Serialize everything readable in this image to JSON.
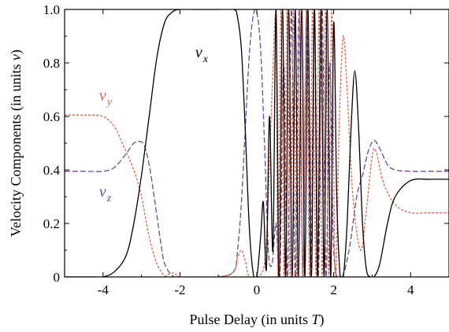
{
  "chart_data": {
    "type": "line",
    "xlabel": "Pulse Delay (in units T)",
    "ylabel": "Velocity Components (in units v)",
    "xlim": [
      -5,
      5
    ],
    "ylim": [
      0,
      1
    ],
    "xticks": [
      -4,
      -2,
      0,
      2,
      4
    ],
    "xtick_labels": [
      "-4",
      "-2",
      "0",
      "2",
      "4"
    ],
    "yticks": [
      0,
      0.2,
      0.4,
      0.6,
      0.8,
      1.0
    ],
    "ytick_labels": [
      "0",
      "0.2",
      "0.4",
      "0.6",
      "0.8",
      "1.0"
    ],
    "grid": false,
    "series": [
      {
        "name": "v_x",
        "label_main": "v",
        "label_sub": "x",
        "color": "#000000",
        "style": "solid",
        "x": [
          -5.0,
          -4.5,
          -4.2,
          -4.0,
          -3.7,
          -3.4,
          -3.2,
          -3.0,
          -2.8,
          -2.6,
          -2.4,
          -2.2,
          -2.0,
          -1.5,
          -1.0,
          -0.6,
          -0.5,
          -0.4,
          -0.3,
          -0.2,
          -0.1,
          0.0,
          0.1,
          0.17,
          0.25,
          0.33,
          0.42,
          0.5,
          0.58,
          0.67,
          0.75,
          0.83,
          0.92,
          1.0,
          1.08,
          1.17,
          1.25,
          1.33,
          1.42,
          1.5,
          1.58,
          1.67,
          1.75,
          1.83,
          1.92,
          2.0,
          2.08,
          2.17,
          2.25,
          2.35,
          2.45,
          2.55,
          2.65,
          2.75,
          2.85,
          2.95,
          3.05,
          3.2,
          3.4,
          3.6,
          4.0,
          4.5,
          5.0
        ],
        "y": [
          0.0,
          0.0,
          0.0,
          0.0,
          0.02,
          0.08,
          0.2,
          0.38,
          0.6,
          0.82,
          0.95,
          0.99,
          1.0,
          1.0,
          1.0,
          1.0,
          0.97,
          0.85,
          0.55,
          0.2,
          0.02,
          0.0,
          0.15,
          0.28,
          0.03,
          0.6,
          0.1,
          1.0,
          0.0,
          1.0,
          0.0,
          1.0,
          0.0,
          1.0,
          0.0,
          1.0,
          0.0,
          1.0,
          0.0,
          1.0,
          0.0,
          1.0,
          0.0,
          1.0,
          0.0,
          0.95,
          0.3,
          0.0,
          0.0,
          0.2,
          0.55,
          0.77,
          0.55,
          0.2,
          0.03,
          0.0,
          0.0,
          0.05,
          0.2,
          0.3,
          0.36,
          0.365,
          0.365
        ]
      },
      {
        "name": "v_y",
        "label_main": "v",
        "label_sub": "y",
        "color": "#e8603a",
        "style": "dotted",
        "x": [
          -5.0,
          -4.5,
          -4.0,
          -3.7,
          -3.5,
          -3.2,
          -3.0,
          -2.8,
          -2.6,
          -2.4,
          -2.3,
          -2.2,
          -2.1,
          -2.0,
          -1.0,
          -0.6,
          -0.5,
          -0.4,
          -0.3,
          -0.2,
          0.0,
          0.2,
          0.3,
          0.4,
          0.5,
          0.55,
          0.63,
          0.71,
          0.79,
          0.87,
          0.95,
          1.04,
          1.12,
          1.2,
          1.29,
          1.37,
          1.45,
          1.54,
          1.62,
          1.7,
          1.79,
          1.87,
          1.95,
          2.04,
          2.15,
          2.25,
          2.35,
          2.5,
          2.7,
          2.85,
          3.0,
          3.1,
          3.3,
          3.6,
          4.0,
          4.5,
          5.0
        ],
        "y": [
          0.605,
          0.605,
          0.6,
          0.56,
          0.5,
          0.4,
          0.3,
          0.15,
          0.05,
          0.005,
          0.01,
          0.015,
          0.01,
          0.0,
          0.0,
          0.02,
          0.07,
          0.1,
          0.06,
          0.0,
          0.0,
          0.05,
          0.3,
          0.7,
          0.95,
          0.0,
          1.0,
          0.0,
          1.0,
          0.0,
          1.0,
          0.0,
          1.0,
          0.0,
          1.0,
          0.0,
          1.0,
          0.0,
          1.0,
          0.0,
          1.0,
          0.0,
          1.0,
          0.0,
          0.6,
          0.9,
          0.7,
          0.3,
          0.1,
          0.25,
          0.45,
          0.47,
          0.35,
          0.27,
          0.24,
          0.24,
          0.24
        ]
      },
      {
        "name": "v_z",
        "label_main": "v",
        "label_sub": "z",
        "color": "#6a4ba0",
        "style": "dashed",
        "x": [
          -5.0,
          -4.5,
          -4.0,
          -3.7,
          -3.4,
          -3.2,
          -3.0,
          -2.9,
          -2.8,
          -2.7,
          -2.6,
          -2.5,
          -2.4,
          -2.2,
          -2.0,
          -1.5,
          -1.0,
          -0.6,
          -0.5,
          -0.4,
          -0.3,
          -0.2,
          -0.1,
          0.0,
          0.1,
          0.2,
          0.3,
          0.4,
          0.5,
          0.6,
          0.7,
          0.8,
          0.9,
          1.0,
          1.1,
          1.2,
          1.3,
          1.4,
          1.5,
          1.6,
          1.7,
          1.8,
          1.9,
          2.0,
          2.2,
          2.4,
          2.6,
          2.75,
          2.9,
          3.05,
          3.2,
          3.4,
          3.6,
          4.0,
          4.5,
          5.0
        ],
        "y": [
          0.395,
          0.395,
          0.395,
          0.41,
          0.46,
          0.5,
          0.505,
          0.48,
          0.42,
          0.33,
          0.23,
          0.13,
          0.05,
          0.005,
          0.0,
          0.0,
          0.0,
          0.02,
          0.1,
          0.28,
          0.55,
          0.82,
          0.97,
          0.99,
          0.85,
          0.5,
          0.1,
          0.05,
          0.2,
          0.0,
          0.8,
          0.0,
          1.0,
          0.0,
          1.0,
          0.0,
          1.0,
          0.0,
          1.0,
          0.0,
          1.0,
          0.0,
          0.8,
          0.1,
          0.0,
          0.1,
          0.3,
          0.38,
          0.47,
          0.51,
          0.48,
          0.42,
          0.4,
          0.395,
          0.395,
          0.395
        ]
      }
    ]
  }
}
